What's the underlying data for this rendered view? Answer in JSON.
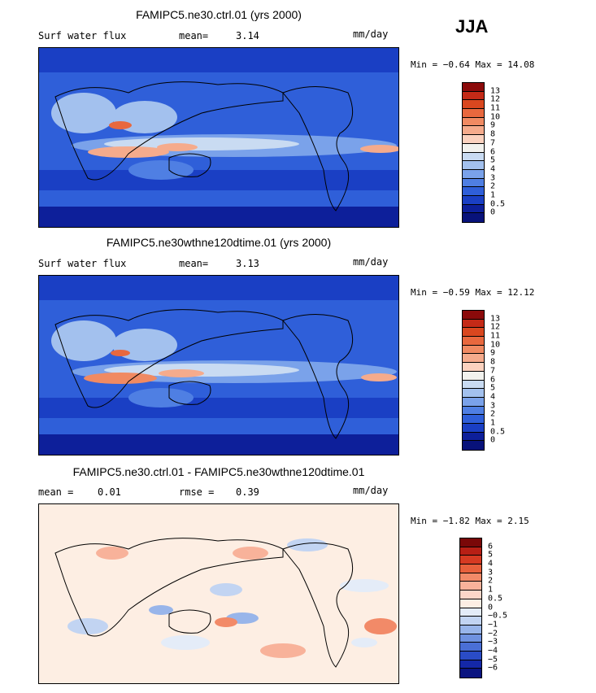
{
  "season": "JJA",
  "panels": [
    {
      "title": "FAMIPC5.ne30.ctrl.01 (yrs 2000)",
      "left_label": "Surf water flux",
      "mid_label": "mean=",
      "mid_value": "3.14",
      "units": "mm/day",
      "min_label": "Min =",
      "min_value": "−0.64",
      "max_label": "Max =",
      "max_value": "14.08",
      "colorbar": {
        "labels": [
          "13",
          "12",
          "11",
          "10",
          "9",
          "8",
          "7",
          "6",
          "5",
          "4",
          "3",
          "2",
          "1",
          "0.5",
          "0"
        ],
        "colors": [
          "#8b0a0a",
          "#c42a17",
          "#d9471f",
          "#e8683e",
          "#f08a62",
          "#f5ab8c",
          "#fbd2bf",
          "#f2f2ee",
          "#c9dbf2",
          "#a3c1ee",
          "#7aa2ea",
          "#4f7fe3",
          "#2f5fd9",
          "#1a3fc4",
          "#0d1f9a",
          "#08127a"
        ]
      }
    },
    {
      "title": "FAMIPC5.ne30wthne120dtime.01 (yrs 2000)",
      "left_label": "Surf water flux",
      "mid_label": "mean=",
      "mid_value": "3.13",
      "units": "mm/day",
      "min_label": "Min =",
      "min_value": "−0.59",
      "max_label": "Max =",
      "max_value": "12.12",
      "colorbar": {
        "labels": [
          "13",
          "12",
          "11",
          "10",
          "9",
          "8",
          "7",
          "6",
          "5",
          "4",
          "3",
          "2",
          "1",
          "0.5",
          "0"
        ],
        "colors": [
          "#8b0a0a",
          "#c42a17",
          "#d9471f",
          "#e8683e",
          "#f08a62",
          "#f5ab8c",
          "#fbd2bf",
          "#f2f2ee",
          "#c9dbf2",
          "#a3c1ee",
          "#7aa2ea",
          "#4f7fe3",
          "#2f5fd9",
          "#1a3fc4",
          "#0d1f9a",
          "#08127a"
        ]
      }
    },
    {
      "title": "FAMIPC5.ne30.ctrl.01 - FAMIPC5.ne30wthne120dtime.01",
      "left_label": "mean =",
      "left_value": "0.01",
      "mid_label": "rmse =",
      "mid_value": "0.39",
      "units": "mm/day",
      "min_label": "Min =",
      "min_value": "−1.82",
      "max_label": "Max =",
      "max_value": "2.15",
      "colorbar": {
        "labels": [
          "6",
          "5",
          "4",
          "3",
          "2",
          "1",
          "0.5",
          "0",
          "−0.5",
          "−1",
          "−2",
          "−3",
          "−4",
          "−5",
          "−6"
        ],
        "colors": [
          "#7a0808",
          "#b81f15",
          "#d63a22",
          "#e8603c",
          "#f28a68",
          "#f8b29a",
          "#fcd6c8",
          "#fdeee3",
          "#e4ecf8",
          "#c2d4f2",
          "#98b5ea",
          "#6f92e0",
          "#4a6fd6",
          "#2a4cc6",
          "#1428a8",
          "#0a1480"
        ]
      }
    }
  ],
  "chart_data": [
    {
      "type": "heatmap",
      "title": "FAMIPC5.ne30.ctrl.01 (yrs 2000)",
      "variable": "Surf water flux",
      "units": "mm/day",
      "season": "JJA",
      "mean": 3.14,
      "min": -0.64,
      "max": 14.08,
      "contour_levels": [
        0,
        0.5,
        1,
        2,
        3,
        4,
        5,
        6,
        7,
        8,
        9,
        10,
        11,
        12,
        13
      ]
    },
    {
      "type": "heatmap",
      "title": "FAMIPC5.ne30wthne120dtime.01 (yrs 2000)",
      "variable": "Surf water flux",
      "units": "mm/day",
      "season": "JJA",
      "mean": 3.13,
      "min": -0.59,
      "max": 12.12,
      "contour_levels": [
        0,
        0.5,
        1,
        2,
        3,
        4,
        5,
        6,
        7,
        8,
        9,
        10,
        11,
        12,
        13
      ]
    },
    {
      "type": "heatmap",
      "title": "FAMIPC5.ne30.ctrl.01 - FAMIPC5.ne30wthne120dtime.01",
      "units": "mm/day",
      "season": "JJA",
      "mean": 0.01,
      "rmse": 0.39,
      "min": -1.82,
      "max": 2.15,
      "contour_levels": [
        -6,
        -5,
        -4,
        -3,
        -2,
        -1,
        -0.5,
        0,
        0.5,
        1,
        2,
        3,
        4,
        5,
        6
      ]
    }
  ]
}
